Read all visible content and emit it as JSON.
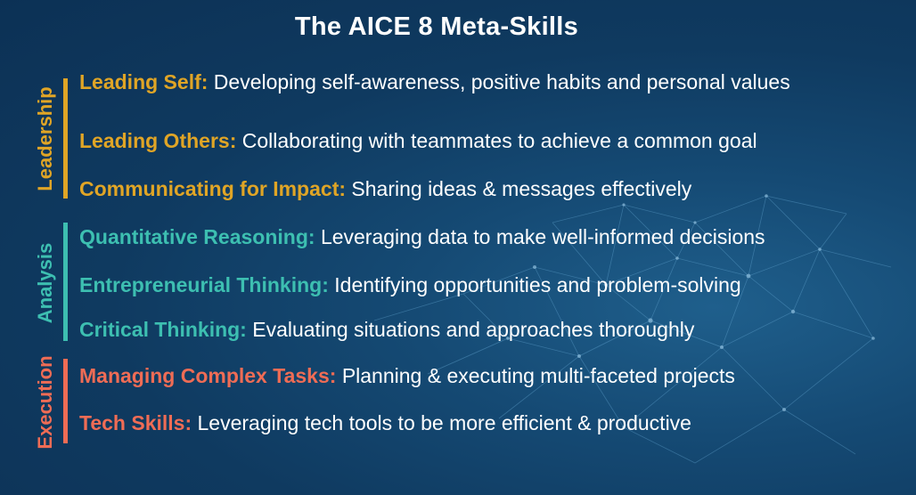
{
  "title": "The AICE 8 Meta-Skills",
  "colors": {
    "leadership": "#e0a526",
    "analysis": "#3dbfb1",
    "execution": "#ef6c55",
    "background": "#0f3a60",
    "text": "#ffffff"
  },
  "groups": [
    {
      "label": "Leadership",
      "color": "#e0a526",
      "items": [
        {
          "name": "Leading Self:",
          "desc": "Developing self-awareness, positive habits and personal values"
        },
        {
          "name": "Leading Others:",
          "desc": "Collaborating with teammates to achieve a common goal"
        },
        {
          "name": "Communicating for Impact:",
          "desc": "Sharing ideas & messages effectively"
        }
      ]
    },
    {
      "label": "Analysis",
      "color": "#3dbfb1",
      "items": [
        {
          "name": "Quantitative Reasoning:",
          "desc": "Leveraging data to make well-informed decisions"
        },
        {
          "name": "Entrepreneurial Thinking:",
          "desc": "Identifying opportunities and problem-solving"
        },
        {
          "name": "Critical Thinking:",
          "desc": "Evaluating situations and approaches thoroughly"
        }
      ]
    },
    {
      "label": "Execution",
      "color": "#ef6c55",
      "items": [
        {
          "name": "Managing Complex Tasks:",
          "desc": "Planning & executing multi-faceted projects"
        },
        {
          "name": "Tech Skills:",
          "desc": "Leveraging tech tools to be more efficient & productive"
        }
      ]
    }
  ]
}
